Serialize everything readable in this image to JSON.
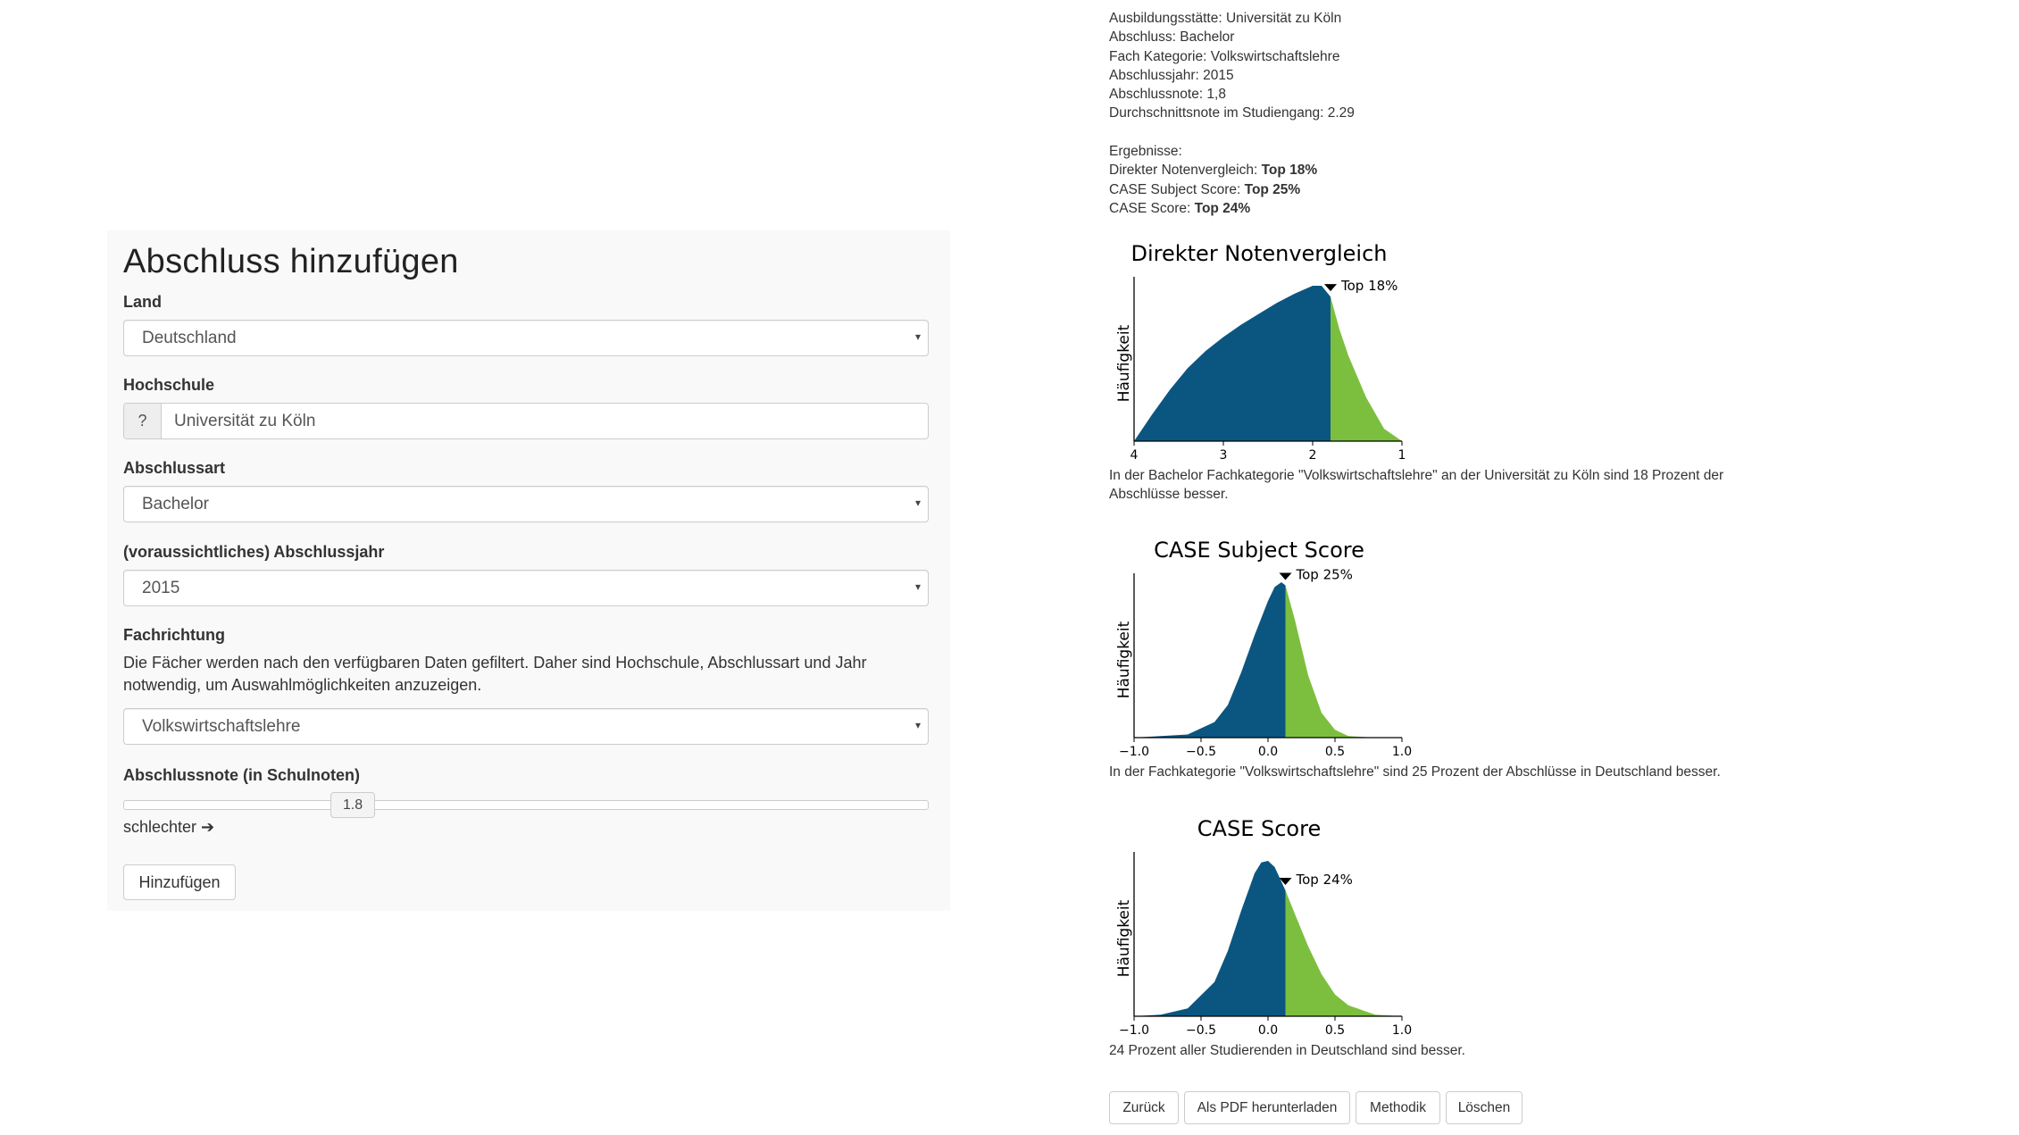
{
  "form": {
    "title": "Abschluss hinzufügen",
    "land": {
      "label": "Land",
      "value": "Deutschland"
    },
    "hochschule": {
      "label": "Hochschule",
      "addon": "?",
      "value": "Universität zu Köln"
    },
    "abschlussart": {
      "label": "Abschlussart",
      "value": "Bachelor"
    },
    "jahr": {
      "label": "(voraussichtliches) Abschlussjahr",
      "value": "2015"
    },
    "fach": {
      "label": "Fachrichtung",
      "help": "Die Fächer werden nach den verfügbaren Daten gefiltert. Daher sind Hochschule, Abschlussart und Jahr notwendig, um Auswahlmöglichkeiten anzuzeigen.",
      "value": "Volkswirtschaftslehre"
    },
    "note": {
      "label": "Abschlussnote (in Schulnoten)",
      "value": "1.8",
      "hint": "schlechter ➔",
      "fraction": 0.285
    },
    "submit": "Hinzufügen",
    "caret": "▾"
  },
  "info": {
    "lines": [
      "Ausbildungsstätte: Universität zu Köln",
      "Abschluss: Bachelor",
      "Fach Kategorie: Volkswirtschaftslehre",
      "Abschlussjahr: 2015",
      "Abschlussnote: 1,8",
      "Durchschnittsnote im Studiengang: 2.29"
    ],
    "results_heading": "Ergebnisse:",
    "results": [
      {
        "label": "Direkter Notenvergleich: ",
        "value": "Top 18%"
      },
      {
        "label": "CASE Subject Score: ",
        "value": "Top 25%"
      },
      {
        "label": "CASE Score: ",
        "value": "Top 24%"
      }
    ]
  },
  "colors": {
    "dark": "#0b5681",
    "green": "#7cbf3f"
  },
  "chart_data": [
    {
      "type": "area",
      "title": "Direkter Notenvergleich",
      "ylabel": "Häufigkeit",
      "xlim": [
        4,
        1
      ],
      "xticks": [
        4,
        3,
        2,
        1
      ],
      "tick_labels": [
        "4",
        "3",
        "2",
        "1"
      ],
      "cutoff": 1.8,
      "marker_label": "Top 18%",
      "x": [
        4.0,
        3.8,
        3.6,
        3.4,
        3.2,
        3.0,
        2.8,
        2.6,
        2.4,
        2.2,
        2.0,
        1.9,
        1.8,
        1.7,
        1.6,
        1.4,
        1.2,
        1.0
      ],
      "y": [
        0.0,
        0.17,
        0.33,
        0.47,
        0.58,
        0.67,
        0.75,
        0.82,
        0.89,
        0.95,
        1.0,
        1.0,
        0.93,
        0.72,
        0.55,
        0.28,
        0.08,
        0.0
      ]
    },
    {
      "type": "area",
      "title": "CASE Subject Score",
      "ylabel": "Häufigkeit",
      "xlim": [
        -1.0,
        1.0
      ],
      "xticks": [
        -1.0,
        -0.5,
        0.0,
        0.5,
        1.0
      ],
      "tick_labels": [
        "−1.0",
        "−0.5",
        "0.0",
        "0.5",
        "1.0"
      ],
      "cutoff": 0.13,
      "marker_label": "Top 25%",
      "x": [
        -1.0,
        -0.6,
        -0.4,
        -0.3,
        -0.2,
        -0.1,
        0.0,
        0.05,
        0.1,
        0.13,
        0.2,
        0.3,
        0.4,
        0.5,
        0.6,
        0.8,
        1.0
      ],
      "y": [
        0.0,
        0.02,
        0.1,
        0.21,
        0.42,
        0.66,
        0.88,
        0.97,
        1.0,
        0.98,
        0.76,
        0.4,
        0.16,
        0.05,
        0.01,
        0.0,
        0.0
      ]
    },
    {
      "type": "area",
      "title": "CASE Score",
      "ylabel": "Häufigkeit",
      "xlim": [
        -1.0,
        1.0
      ],
      "xticks": [
        -1.0,
        -0.5,
        0.0,
        0.5,
        1.0
      ],
      "tick_labels": [
        "−1.0",
        "−0.5",
        "0.0",
        "0.5",
        "1.0"
      ],
      "cutoff": 0.13,
      "marker_label": "Top 24%",
      "x": [
        -1.0,
        -0.8,
        -0.6,
        -0.4,
        -0.3,
        -0.2,
        -0.1,
        -0.05,
        0.0,
        0.05,
        0.13,
        0.2,
        0.3,
        0.4,
        0.5,
        0.6,
        0.8,
        1.0
      ],
      "y": [
        0.0,
        0.01,
        0.05,
        0.22,
        0.42,
        0.68,
        0.92,
        0.99,
        1.0,
        0.96,
        0.81,
        0.66,
        0.45,
        0.27,
        0.14,
        0.07,
        0.01,
        0.0
      ]
    }
  ],
  "captions": [
    "In der Bachelor Fachkategorie \"Volkswirtschaftslehre\" an der Universität zu Köln sind 18 Prozent der Abschlüsse besser.",
    "In der Fachkategorie \"Volkswirtschaftslehre\" sind 25 Prozent der Abschlüsse in Deutschland besser.",
    "24 Prozent aller Studierenden in Deutschland sind besser."
  ],
  "actions": {
    "back": "Zurück",
    "pdf": "Als PDF herunterladen",
    "method": "Methodik",
    "delete": "Löschen"
  }
}
